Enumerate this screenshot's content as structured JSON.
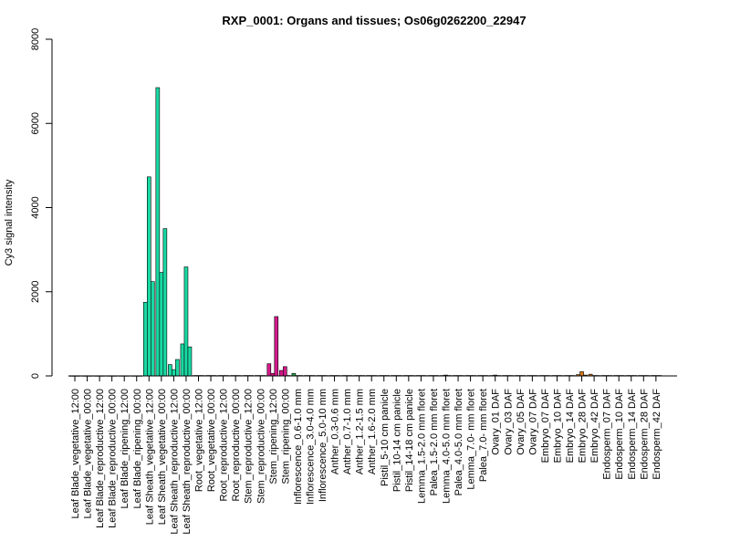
{
  "chart_data": {
    "type": "bar",
    "title": "RXP_0001: Organs and tissues; Os06g0262200_22947",
    "xlabel": "",
    "ylabel": "Cy3 signal intensity",
    "ylim": [
      0,
      8000
    ],
    "yticks": [
      0,
      2000,
      4000,
      6000,
      8000
    ],
    "grid": false,
    "legend": "none",
    "bars_per_category": 3,
    "categories": [
      "Leaf Blade_vegetative_12:00",
      "Leaf Blade_vegetative_00:00",
      "Leaf Blade_reproductive_12:00",
      "Leaf Blade_reproductive_00:00",
      "Leaf Blade_ripening_12:00",
      "Leaf Blade_ripening_00:00",
      "Leaf Sheath_vegetative_12:00",
      "Leaf Sheath_vegetative_00:00",
      "Leaf Sheath_reproductive_12:00",
      "Leaf Sheath_reproductive_00:00",
      "Root_vegetative_12:00",
      "Root_vegetative_00:00",
      "Root_reproductive_12:00",
      "Root_reproductive_00:00",
      "Stem_reproductive_12:00",
      "Stem_reproductive_00:00",
      "Stem_ripening_12:00",
      "Stem_ripening_00:00",
      "Inflorescence_0.6-1.0 mm",
      "Inflorescence_3.0-4.0 mm",
      "Inflorescence_5.0-10 mm",
      "Anther_0.3-0.6 mm",
      "Anther_0.7-1.0 mm",
      "Anther_1.2-1.5 mm",
      "Anther_1.6-2.0 mm",
      "Pistil_5-10 cm panicle",
      "Pistil_10-14 cm panicle",
      "Pistil_14-18 cm panicle",
      "Lemma_1.5-2.0 mm floret",
      "Palea_1.5-2.0 mm floret",
      "Lemma_4.0-5.0 mm floret",
      "Palea_4.0-5.0 mm floret",
      "Lemma_7.0- mm floret",
      "Palea_7.0- mm floret",
      "Ovary_01 DAF",
      "Ovary_03 DAF",
      "Ovary_05 DAF",
      "Ovary_07 DAF",
      "Embryo_07 DAF",
      "Embryo_10 DAF",
      "Embryo_14 DAF",
      "Embryo_28 DAF",
      "Embryo_42 DAF",
      "Endosperm_07 DAF",
      "Endosperm_10 DAF",
      "Endosperm_14 DAF",
      "Endosperm_28 DAF",
      "Endosperm_42 DAF"
    ],
    "category_colors": [
      "#1ad9a3",
      "#1ad9a3",
      "#1ad9a3",
      "#1ad9a3",
      "#1ad9a3",
      "#1ad9a3",
      "#1ad9a3",
      "#1ad9a3",
      "#1ad9a3",
      "#1ad9a3",
      "#1ad9a3",
      "#1ad9a3",
      "#1ad9a3",
      "#1ad9a3",
      "#d41a8a",
      "#d41a8a",
      "#d41a8a",
      "#d41a8a",
      "#22a84a",
      "#22a84a",
      "#22a84a",
      "#888888",
      "#888888",
      "#888888",
      "#888888",
      "#888888",
      "#888888",
      "#888888",
      "#888888",
      "#888888",
      "#888888",
      "#888888",
      "#888888",
      "#888888",
      "#888888",
      "#888888",
      "#888888",
      "#888888",
      "#d97a1a",
      "#d97a1a",
      "#d97a1a",
      "#d97a1a",
      "#d97a1a",
      "#888888",
      "#888888",
      "#888888",
      "#888888",
      "#888888"
    ],
    "values": [
      [
        5,
        5,
        5
      ],
      [
        5,
        5,
        5
      ],
      [
        5,
        5,
        5
      ],
      [
        5,
        5,
        5
      ],
      [
        5,
        5,
        5
      ],
      [
        5,
        5,
        5
      ],
      [
        1750,
        4730,
        2240
      ],
      [
        6850,
        2460,
        3500
      ],
      [
        270,
        150,
        390
      ],
      [
        760,
        2590,
        690
      ],
      [
        10,
        10,
        10
      ],
      [
        10,
        10,
        10
      ],
      [
        10,
        10,
        10
      ],
      [
        10,
        10,
        10
      ],
      [
        10,
        10,
        10
      ],
      [
        10,
        10,
        10
      ],
      [
        290,
        60,
        1410
      ],
      [
        130,
        220,
        10
      ],
      [
        60,
        10,
        10
      ],
      [
        10,
        10,
        10
      ],
      [
        10,
        10,
        10
      ],
      [
        10,
        10,
        10
      ],
      [
        10,
        10,
        10
      ],
      [
        10,
        10,
        10
      ],
      [
        10,
        10,
        10
      ],
      [
        10,
        10,
        10
      ],
      [
        10,
        10,
        10
      ],
      [
        10,
        10,
        10
      ],
      [
        10,
        10,
        10
      ],
      [
        10,
        10,
        10
      ],
      [
        10,
        20,
        10
      ],
      [
        10,
        10,
        10
      ],
      [
        10,
        10,
        10
      ],
      [
        10,
        10,
        10
      ],
      [
        10,
        20,
        10
      ],
      [
        10,
        10,
        10
      ],
      [
        10,
        10,
        10
      ],
      [
        10,
        10,
        10
      ],
      [
        10,
        10,
        10
      ],
      [
        10,
        10,
        10
      ],
      [
        10,
        10,
        10
      ],
      [
        30,
        100,
        20
      ],
      [
        40,
        10,
        10
      ],
      [
        10,
        10,
        10
      ],
      [
        10,
        10,
        10
      ],
      [
        10,
        10,
        10
      ],
      [
        10,
        10,
        10
      ],
      [
        10,
        10,
        10
      ]
    ]
  }
}
